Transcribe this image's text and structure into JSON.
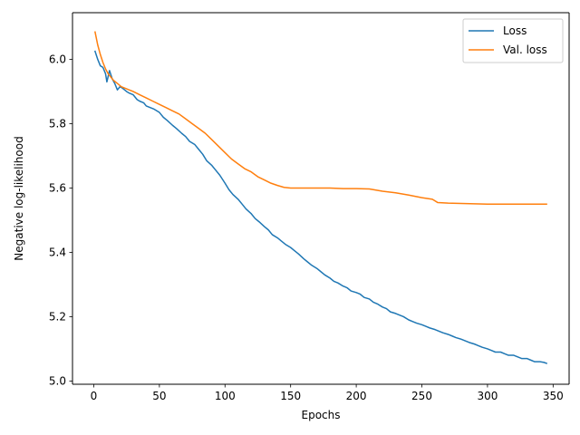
{
  "chart_data": {
    "type": "line",
    "title": "",
    "xlabel": "Epochs",
    "ylabel": "Negative log-likelihood",
    "xlim": [
      -16.2,
      362.2
    ],
    "ylim": [
      4.99,
      6.145
    ],
    "xticks": [
      0,
      50,
      100,
      150,
      200,
      250,
      300,
      350
    ],
    "yticks": [
      5.0,
      5.2,
      5.4,
      5.6,
      5.8,
      6.0
    ],
    "ytick_labels": [
      "5.0",
      "5.2",
      "5.4",
      "5.6",
      "5.8",
      "6.0"
    ],
    "grid": false,
    "legend_position": "upper right",
    "series": [
      {
        "name": "Loss",
        "color": "#1f77b4",
        "points": [
          [
            1,
            6.025
          ],
          [
            3,
            6.0
          ],
          [
            5,
            5.98
          ],
          [
            7,
            5.975
          ],
          [
            9,
            5.955
          ],
          [
            10,
            5.93
          ],
          [
            12,
            5.965
          ],
          [
            14,
            5.94
          ],
          [
            16,
            5.925
          ],
          [
            18,
            5.905
          ],
          [
            20,
            5.915
          ],
          [
            22,
            5.91
          ],
          [
            25,
            5.9
          ],
          [
            27,
            5.895
          ],
          [
            30,
            5.89
          ],
          [
            33,
            5.875
          ],
          [
            35,
            5.87
          ],
          [
            38,
            5.865
          ],
          [
            40,
            5.855
          ],
          [
            43,
            5.85
          ],
          [
            46,
            5.845
          ],
          [
            50,
            5.835
          ],
          [
            53,
            5.82
          ],
          [
            56,
            5.81
          ],
          [
            60,
            5.795
          ],
          [
            63,
            5.785
          ],
          [
            67,
            5.77
          ],
          [
            70,
            5.76
          ],
          [
            73,
            5.745
          ],
          [
            77,
            5.735
          ],
          [
            80,
            5.72
          ],
          [
            83,
            5.705
          ],
          [
            86,
            5.685
          ],
          [
            90,
            5.67
          ],
          [
            93,
            5.655
          ],
          [
            96,
            5.64
          ],
          [
            100,
            5.615
          ],
          [
            103,
            5.595
          ],
          [
            106,
            5.58
          ],
          [
            110,
            5.565
          ],
          [
            113,
            5.55
          ],
          [
            116,
            5.535
          ],
          [
            120,
            5.52
          ],
          [
            123,
            5.505
          ],
          [
            126,
            5.495
          ],
          [
            130,
            5.48
          ],
          [
            133,
            5.47
          ],
          [
            136,
            5.455
          ],
          [
            140,
            5.445
          ],
          [
            143,
            5.435
          ],
          [
            146,
            5.425
          ],
          [
            150,
            5.415
          ],
          [
            153,
            5.405
          ],
          [
            156,
            5.395
          ],
          [
            160,
            5.38
          ],
          [
            163,
            5.37
          ],
          [
            166,
            5.36
          ],
          [
            170,
            5.35
          ],
          [
            173,
            5.34
          ],
          [
            176,
            5.33
          ],
          [
            180,
            5.32
          ],
          [
            183,
            5.31
          ],
          [
            186,
            5.305
          ],
          [
            190,
            5.295
          ],
          [
            193,
            5.29
          ],
          [
            196,
            5.28
          ],
          [
            200,
            5.275
          ],
          [
            203,
            5.27
          ],
          [
            206,
            5.26
          ],
          [
            210,
            5.255
          ],
          [
            213,
            5.245
          ],
          [
            216,
            5.24
          ],
          [
            220,
            5.23
          ],
          [
            223,
            5.225
          ],
          [
            226,
            5.215
          ],
          [
            230,
            5.21
          ],
          [
            233,
            5.205
          ],
          [
            236,
            5.2
          ],
          [
            240,
            5.19
          ],
          [
            243,
            5.185
          ],
          [
            246,
            5.18
          ],
          [
            250,
            5.175
          ],
          [
            253,
            5.17
          ],
          [
            256,
            5.165
          ],
          [
            260,
            5.16
          ],
          [
            263,
            5.155
          ],
          [
            266,
            5.15
          ],
          [
            270,
            5.145
          ],
          [
            273,
            5.14
          ],
          [
            276,
            5.135
          ],
          [
            280,
            5.13
          ],
          [
            283,
            5.125
          ],
          [
            286,
            5.12
          ],
          [
            290,
            5.115
          ],
          [
            293,
            5.11
          ],
          [
            296,
            5.105
          ],
          [
            300,
            5.1
          ],
          [
            303,
            5.095
          ],
          [
            306,
            5.09
          ],
          [
            310,
            5.09
          ],
          [
            313,
            5.085
          ],
          [
            316,
            5.08
          ],
          [
            320,
            5.08
          ],
          [
            323,
            5.075
          ],
          [
            326,
            5.07
          ],
          [
            330,
            5.07
          ],
          [
            333,
            5.065
          ],
          [
            336,
            5.06
          ],
          [
            340,
            5.06
          ],
          [
            343,
            5.058
          ],
          [
            345,
            5.055
          ]
        ]
      },
      {
        "name": "Val. loss",
        "color": "#ff7f0e",
        "points": [
          [
            1,
            6.085
          ],
          [
            3,
            6.045
          ],
          [
            5,
            6.015
          ],
          [
            7,
            5.99
          ],
          [
            9,
            5.97
          ],
          [
            11,
            5.955
          ],
          [
            13,
            5.945
          ],
          [
            15,
            5.935
          ],
          [
            18,
            5.925
          ],
          [
            21,
            5.915
          ],
          [
            24,
            5.91
          ],
          [
            27,
            5.905
          ],
          [
            30,
            5.9
          ],
          [
            35,
            5.89
          ],
          [
            40,
            5.88
          ],
          [
            45,
            5.87
          ],
          [
            50,
            5.86
          ],
          [
            55,
            5.85
          ],
          [
            60,
            5.84
          ],
          [
            65,
            5.83
          ],
          [
            70,
            5.815
          ],
          [
            75,
            5.8
          ],
          [
            80,
            5.785
          ],
          [
            85,
            5.77
          ],
          [
            90,
            5.75
          ],
          [
            95,
            5.73
          ],
          [
            100,
            5.71
          ],
          [
            105,
            5.69
          ],
          [
            110,
            5.675
          ],
          [
            115,
            5.66
          ],
          [
            120,
            5.65
          ],
          [
            125,
            5.635
          ],
          [
            130,
            5.625
          ],
          [
            135,
            5.615
          ],
          [
            140,
            5.608
          ],
          [
            145,
            5.602
          ],
          [
            150,
            5.6
          ],
          [
            160,
            5.6
          ],
          [
            170,
            5.6
          ],
          [
            180,
            5.6
          ],
          [
            190,
            5.598
          ],
          [
            200,
            5.598
          ],
          [
            210,
            5.597
          ],
          [
            220,
            5.59
          ],
          [
            230,
            5.585
          ],
          [
            240,
            5.578
          ],
          [
            250,
            5.57
          ],
          [
            258,
            5.565
          ],
          [
            262,
            5.555
          ],
          [
            270,
            5.553
          ],
          [
            280,
            5.552
          ],
          [
            290,
            5.551
          ],
          [
            300,
            5.55
          ],
          [
            310,
            5.55
          ],
          [
            320,
            5.55
          ],
          [
            330,
            5.55
          ],
          [
            340,
            5.55
          ],
          [
            345,
            5.55
          ]
        ]
      }
    ]
  }
}
